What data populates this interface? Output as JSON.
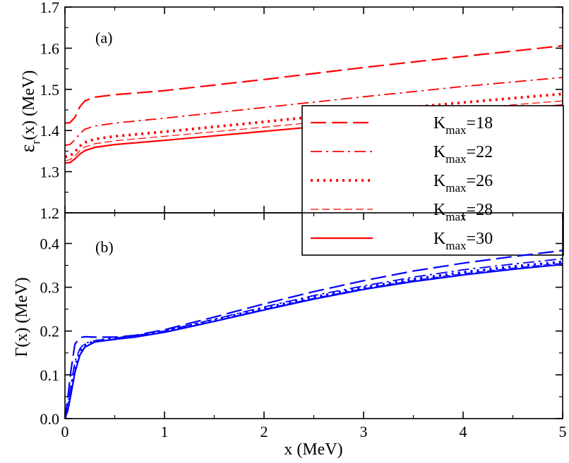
{
  "chart_data": [
    {
      "type": "line",
      "panel_label": "(a)",
      "ylabel": "ε_r(x)  (MeV)",
      "ylabel_main": "ε",
      "ylabel_sub": "r",
      "ylabel_rest": "(x)  (MeV)",
      "xlim": [
        0,
        5
      ],
      "ylim": [
        1.2,
        1.7
      ],
      "yticks": [
        "1.2",
        "1.3",
        "1.4",
        "1.5",
        "1.6",
        "1.7"
      ],
      "ytick_values": [
        1.2,
        1.3,
        1.4,
        1.5,
        1.6,
        1.7
      ],
      "color": "#ff0000",
      "legend": {
        "placement": "right",
        "entries": [
          {
            "main": "K",
            "sub": "max",
            "rest": "=18",
            "style": "long-dash"
          },
          {
            "main": "K",
            "sub": "max",
            "rest": "=22",
            "style": "dash-dot"
          },
          {
            "main": "K",
            "sub": "max",
            "rest": "=26",
            "style": "dotted"
          },
          {
            "main": "K",
            "sub": "max",
            "rest": "=28",
            "style": "thin-dash"
          },
          {
            "main": "K",
            "sub": "max",
            "rest": "=30",
            "style": "solid"
          }
        ]
      },
      "series": [
        {
          "style": "long-dash",
          "x": [
            0,
            0.05,
            0.1,
            0.15,
            0.2,
            0.3,
            0.5,
            1,
            2,
            3,
            4,
            5
          ],
          "y": [
            1.418,
            1.419,
            1.432,
            1.458,
            1.472,
            1.481,
            1.487,
            1.497,
            1.524,
            1.553,
            1.58,
            1.606
          ]
        },
        {
          "style": "dash-dot",
          "x": [
            0,
            0.05,
            0.1,
            0.15,
            0.2,
            0.3,
            0.5,
            1,
            2,
            3,
            4,
            5
          ],
          "y": [
            1.364,
            1.366,
            1.377,
            1.393,
            1.403,
            1.411,
            1.418,
            1.43,
            1.456,
            1.482,
            1.507,
            1.529
          ]
        },
        {
          "style": "dotted",
          "x": [
            0,
            0.05,
            0.1,
            0.15,
            0.2,
            0.3,
            0.5,
            1,
            2,
            3,
            4,
            5
          ],
          "y": [
            1.336,
            1.338,
            1.348,
            1.362,
            1.371,
            1.379,
            1.386,
            1.397,
            1.421,
            1.446,
            1.468,
            1.489
          ]
        },
        {
          "style": "thin-dash",
          "x": [
            0,
            0.05,
            0.1,
            0.15,
            0.2,
            0.3,
            0.5,
            1,
            2,
            3,
            4,
            5
          ],
          "y": [
            1.327,
            1.329,
            1.338,
            1.351,
            1.36,
            1.368,
            1.375,
            1.386,
            1.408,
            1.431,
            1.453,
            1.472
          ]
        },
        {
          "style": "solid",
          "x": [
            0,
            0.05,
            0.1,
            0.15,
            0.2,
            0.3,
            0.5,
            1,
            2,
            3,
            4,
            5
          ],
          "y": [
            1.321,
            1.322,
            1.331,
            1.343,
            1.351,
            1.359,
            1.366,
            1.376,
            1.398,
            1.42,
            1.442,
            1.462
          ]
        }
      ]
    },
    {
      "type": "line",
      "panel_label": "(b)",
      "ylabel": "Γ(x)  (MeV)",
      "xlabel": "x (MeV)",
      "xlim": [
        0,
        5
      ],
      "ylim": [
        0,
        0.47
      ],
      "xticks": [
        "0",
        "1",
        "2",
        "3",
        "4",
        "5"
      ],
      "xtick_values": [
        0,
        1,
        2,
        3,
        4,
        5
      ],
      "yticks": [
        "0.0",
        "0.1",
        "0.2",
        "0.3",
        "0.4"
      ],
      "ytick_values": [
        0,
        0.1,
        0.2,
        0.3,
        0.4
      ],
      "color": "#0000ff",
      "series": [
        {
          "style": "long-dash",
          "x": [
            0,
            0.03,
            0.06,
            0.1,
            0.15,
            0.2,
            0.3,
            0.5,
            0.7,
            1,
            1.5,
            2,
            2.5,
            3,
            3.5,
            4,
            4.5,
            5
          ],
          "y": [
            0,
            0.05,
            0.11,
            0.17,
            0.185,
            0.187,
            0.186,
            0.186,
            0.19,
            0.203,
            0.232,
            0.262,
            0.29,
            0.315,
            0.337,
            0.355,
            0.37,
            0.384
          ]
        },
        {
          "style": "dash-dot",
          "x": [
            0,
            0.03,
            0.06,
            0.1,
            0.15,
            0.2,
            0.3,
            0.5,
            0.7,
            1,
            1.5,
            2,
            2.5,
            3,
            3.5,
            4,
            4.5,
            5
          ],
          "y": [
            0,
            0.03,
            0.075,
            0.13,
            0.16,
            0.172,
            0.178,
            0.184,
            0.189,
            0.2,
            0.227,
            0.255,
            0.281,
            0.303,
            0.323,
            0.34,
            0.353,
            0.365
          ]
        },
        {
          "style": "dotted",
          "x": [
            0,
            0.03,
            0.06,
            0.1,
            0.15,
            0.2,
            0.3,
            0.5,
            0.7,
            1,
            1.5,
            2,
            2.5,
            3,
            3.5,
            4,
            4.5,
            5
          ],
          "y": [
            0,
            0.025,
            0.065,
            0.115,
            0.152,
            0.168,
            0.177,
            0.183,
            0.188,
            0.199,
            0.225,
            0.252,
            0.277,
            0.299,
            0.318,
            0.334,
            0.347,
            0.358
          ]
        },
        {
          "style": "thin-dash",
          "x": [
            0,
            0.03,
            0.06,
            0.1,
            0.15,
            0.2,
            0.3,
            0.5,
            0.7,
            1,
            1.5,
            2,
            2.5,
            3,
            3.5,
            4,
            4.5,
            5
          ],
          "y": [
            0,
            0.022,
            0.06,
            0.11,
            0.148,
            0.165,
            0.176,
            0.182,
            0.187,
            0.198,
            0.223,
            0.25,
            0.275,
            0.297,
            0.316,
            0.331,
            0.344,
            0.355
          ]
        },
        {
          "style": "solid",
          "x": [
            0,
            0.03,
            0.06,
            0.1,
            0.15,
            0.2,
            0.3,
            0.5,
            0.7,
            1,
            1.5,
            2,
            2.5,
            3,
            3.5,
            4,
            4.5,
            5
          ],
          "y": [
            0,
            0.02,
            0.055,
            0.105,
            0.145,
            0.163,
            0.175,
            0.181,
            0.186,
            0.197,
            0.222,
            0.248,
            0.273,
            0.295,
            0.313,
            0.328,
            0.341,
            0.352
          ]
        }
      ]
    }
  ]
}
